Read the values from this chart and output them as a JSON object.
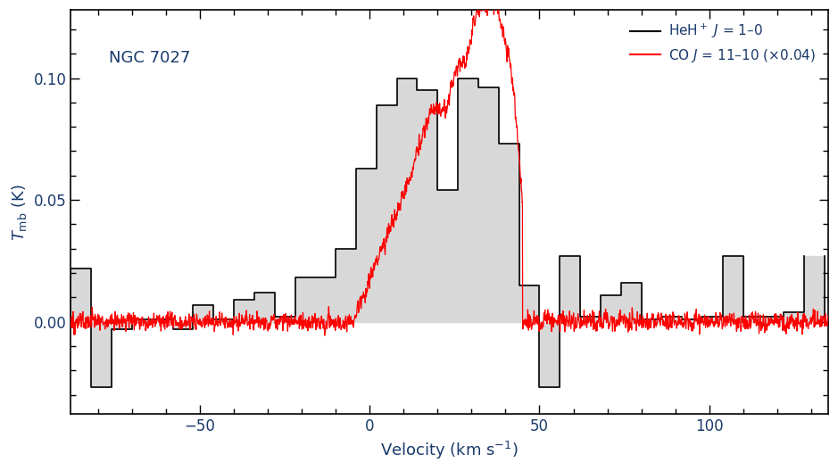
{
  "title": "NGC 7027",
  "xlabel": "Velocity (km s$^{-1}$)",
  "ylabel": "$T_{\\mathrm{mb}}$ (K)",
  "xlim": [
    -88,
    135
  ],
  "ylim": [
    -0.038,
    0.128
  ],
  "yticks": [
    0.0,
    0.05,
    0.1
  ],
  "xticks": [
    -50,
    0,
    50,
    100
  ],
  "legend_labels": [
    "HeH$^+$ $J$ = 1–0",
    "CO $J$ = 11–10 (×0.04)"
  ],
  "legend_colors": [
    "black",
    "red"
  ],
  "heh_bar_color": "#d8d8d8",
  "heh_bar_edge_color": "black",
  "background_color": "white",
  "text_color": "#1a3a6b",
  "heh_bin_edges": [
    -88,
    -82,
    -76,
    -70,
    -64,
    -58,
    -52,
    -46,
    -40,
    -34,
    -28,
    -22,
    -16,
    -10,
    -4,
    2,
    8,
    14,
    20,
    26,
    32,
    38,
    44,
    50,
    56,
    62,
    68,
    74,
    80,
    86,
    92,
    98,
    104,
    110,
    116,
    122,
    128,
    134
  ],
  "heh_values": [
    0.022,
    -0.027,
    -0.003,
    0.001,
    0.001,
    -0.003,
    0.007,
    0.001,
    0.009,
    0.012,
    0.002,
    0.018,
    0.018,
    0.03,
    0.063,
    0.089,
    0.1,
    0.095,
    0.054,
    0.1,
    0.096,
    0.073,
    0.015,
    -0.027,
    0.027,
    0.002,
    0.011,
    0.016,
    0.001,
    0.002,
    0.001,
    0.002,
    0.027,
    0.002,
    0.002,
    0.004,
    0.027
  ],
  "co_noise_seed": 42,
  "co_noise_amp_out": 0.004,
  "co_noise_amp_in": 0.005
}
